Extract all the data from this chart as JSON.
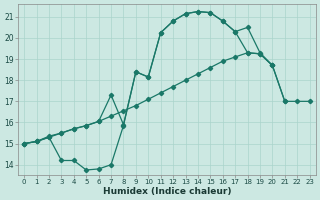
{
  "xlabel": "Humidex (Indice chaleur)",
  "bg_color": "#cce8e2",
  "grid_color": "#aad4cc",
  "line_color": "#1a7868",
  "xlim": [
    -0.5,
    23.5
  ],
  "ylim": [
    13.5,
    21.6
  ],
  "xtick_labels": [
    "0",
    "1",
    "2",
    "3",
    "4",
    "5",
    "6",
    "7",
    "8",
    "9",
    "10",
    "11",
    "12",
    "13",
    "14",
    "15",
    "16",
    "17",
    "18",
    "19",
    "20",
    "21",
    "22",
    "23"
  ],
  "ytick_labels": [
    "14",
    "15",
    "16",
    "17",
    "18",
    "19",
    "20",
    "21"
  ],
  "ytick_vals": [
    14,
    15,
    16,
    17,
    18,
    19,
    20,
    21
  ],
  "line1_x": [
    0,
    1,
    2,
    3,
    4,
    5,
    6,
    7,
    8,
    9,
    10,
    11,
    12,
    13,
    14,
    15,
    16,
    17,
    18,
    19,
    20
  ],
  "line1_y": [
    15.0,
    15.1,
    15.3,
    14.2,
    14.2,
    13.75,
    13.8,
    14.0,
    15.85,
    18.4,
    18.15,
    20.25,
    20.8,
    21.15,
    21.25,
    21.2,
    20.8,
    20.3,
    20.5,
    19.3,
    18.7
  ],
  "line2_x": [
    0,
    1,
    2,
    3,
    4,
    5,
    6,
    7,
    8,
    9,
    10,
    11,
    12,
    13,
    14,
    15,
    16,
    17,
    18,
    19,
    20,
    21,
    22,
    23
  ],
  "line2_y": [
    15.0,
    15.1,
    15.3,
    15.5,
    15.7,
    15.85,
    16.05,
    16.3,
    16.55,
    16.8,
    17.1,
    17.4,
    17.7,
    18.0,
    18.3,
    18.6,
    18.9,
    19.1,
    19.3,
    19.25,
    18.7,
    17.0,
    17.0,
    17.0
  ],
  "line3_x": [
    0,
    1,
    2,
    3,
    4,
    5,
    6,
    7,
    8,
    9,
    10,
    11,
    12,
    13,
    14,
    15,
    16,
    17,
    18,
    19,
    20,
    21
  ],
  "line3_y": [
    15.0,
    15.1,
    15.35,
    15.5,
    15.7,
    15.85,
    16.05,
    17.3,
    15.9,
    18.4,
    18.15,
    20.25,
    20.8,
    21.15,
    21.25,
    21.2,
    20.8,
    20.3,
    19.3,
    19.25,
    18.7,
    17.0
  ]
}
